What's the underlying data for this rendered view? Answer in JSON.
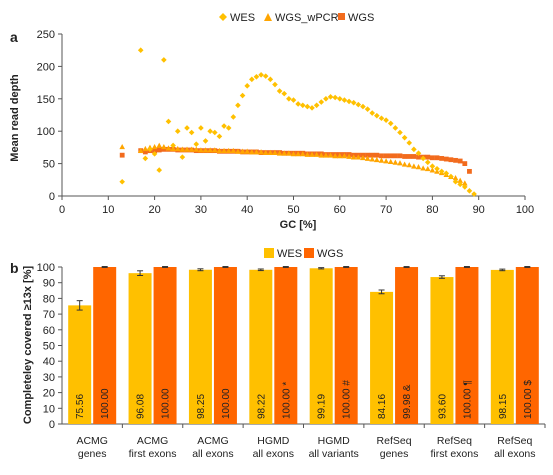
{
  "colors": {
    "wes": "#FFC000",
    "wgs": "#FF6600",
    "wes_marker": "#FFC000",
    "wgs_wpcr_marker": "#FFA500",
    "wgs_marker": "#F26B1D",
    "axis": "#555555"
  },
  "chart_data": [
    {
      "panel": "a",
      "type": "scatter",
      "xlabel": "GC [%]",
      "ylabel": "Mean read depth",
      "xlim": [
        0,
        100
      ],
      "ylim": [
        0,
        250
      ],
      "xticks": [
        "0",
        "10",
        "20",
        "30",
        "40",
        "50",
        "60",
        "70",
        "80",
        "90",
        "100"
      ],
      "yticks": [
        "0",
        "50",
        "100",
        "150",
        "200",
        "250"
      ],
      "legend_position": "top",
      "series": [
        {
          "name": "WES",
          "marker": "diamond",
          "points": [
            [
              13,
              22
            ],
            [
              17,
              225
            ],
            [
              18,
              58
            ],
            [
              19,
              72
            ],
            [
              20,
              65
            ],
            [
              21,
              40
            ],
            [
              22,
              210
            ],
            [
              23,
              115
            ],
            [
              24,
              78
            ],
            [
              25,
              100
            ],
            [
              26,
              60
            ],
            [
              27,
              105
            ],
            [
              28,
              98
            ],
            [
              29,
              80
            ],
            [
              30,
              105
            ],
            [
              31,
              85
            ],
            [
              32,
              100
            ],
            [
              33,
              98
            ],
            [
              34,
              92
            ],
            [
              35,
              108
            ],
            [
              36,
              105
            ],
            [
              37,
              122
            ],
            [
              38,
              140
            ],
            [
              39,
              155
            ],
            [
              40,
              170
            ],
            [
              41,
              180
            ],
            [
              42,
              184
            ],
            [
              43,
              187
            ],
            [
              44,
              185
            ],
            [
              45,
              180
            ],
            [
              46,
              172
            ],
            [
              47,
              162
            ],
            [
              48,
              158
            ],
            [
              49,
              150
            ],
            [
              50,
              148
            ],
            [
              51,
              142
            ],
            [
              52,
              140
            ],
            [
              53,
              138
            ],
            [
              54,
              136
            ],
            [
              55,
              140
            ],
            [
              56,
              145
            ],
            [
              57,
              150
            ],
            [
              58,
              153
            ],
            [
              59,
              152
            ],
            [
              60,
              150
            ],
            [
              61,
              148
            ],
            [
              62,
              146
            ],
            [
              63,
              144
            ],
            [
              64,
              141
            ],
            [
              65,
              138
            ],
            [
              66,
              134
            ],
            [
              67,
              128
            ],
            [
              68,
              124
            ],
            [
              69,
              120
            ],
            [
              70,
              117
            ],
            [
              71,
              112
            ],
            [
              72,
              105
            ],
            [
              73,
              98
            ],
            [
              74,
              90
            ],
            [
              75,
              82
            ],
            [
              76,
              72
            ],
            [
              77,
              66
            ],
            [
              78,
              58
            ],
            [
              79,
              52
            ],
            [
              80,
              46
            ],
            [
              81,
              42
            ],
            [
              82,
              38
            ],
            [
              83,
              35
            ],
            [
              84,
              30
            ],
            [
              85,
              22
            ],
            [
              86,
              18
            ],
            [
              87,
              14
            ],
            [
              88,
              8
            ],
            [
              89,
              3
            ]
          ]
        },
        {
          "name": "WGS_wPCR",
          "marker": "triangle",
          "points": [
            [
              13,
              76
            ],
            [
              17,
              70
            ],
            [
              18,
              73
            ],
            [
              19,
              75
            ],
            [
              20,
              76
            ],
            [
              21,
              78
            ],
            [
              22,
              76
            ],
            [
              23,
              74
            ],
            [
              24,
              73
            ],
            [
              25,
              73
            ],
            [
              26,
              72
            ],
            [
              27,
              72
            ],
            [
              28,
              72
            ],
            [
              29,
              72
            ],
            [
              30,
              71
            ],
            [
              31,
              71
            ],
            [
              32,
              71
            ],
            [
              33,
              71
            ],
            [
              34,
              70
            ],
            [
              35,
              70
            ],
            [
              36,
              70
            ],
            [
              37,
              70
            ],
            [
              38,
              69
            ],
            [
              39,
              69
            ],
            [
              40,
              69
            ],
            [
              41,
              68
            ],
            [
              42,
              68
            ],
            [
              43,
              68
            ],
            [
              44,
              67
            ],
            [
              45,
              67
            ],
            [
              46,
              67
            ],
            [
              47,
              66
            ],
            [
              48,
              66
            ],
            [
              49,
              66
            ],
            [
              50,
              65
            ],
            [
              51,
              65
            ],
            [
              52,
              65
            ],
            [
              53,
              64
            ],
            [
              54,
              64
            ],
            [
              55,
              64
            ],
            [
              56,
              63
            ],
            [
              57,
              63
            ],
            [
              58,
              63
            ],
            [
              59,
              62
            ],
            [
              60,
              62
            ],
            [
              61,
              62
            ],
            [
              62,
              61
            ],
            [
              63,
              60
            ],
            [
              64,
              60
            ],
            [
              65,
              59
            ],
            [
              66,
              58
            ],
            [
              67,
              57
            ],
            [
              68,
              56
            ],
            [
              69,
              55
            ],
            [
              70,
              54
            ],
            [
              71,
              53
            ],
            [
              72,
              52
            ],
            [
              73,
              51
            ],
            [
              74,
              49
            ],
            [
              75,
              48
            ],
            [
              76,
              46
            ],
            [
              77,
              45
            ],
            [
              78,
              43
            ],
            [
              79,
              42
            ],
            [
              80,
              40
            ],
            [
              81,
              38
            ],
            [
              82,
              36
            ],
            [
              83,
              33
            ],
            [
              84,
              30
            ],
            [
              85,
              28
            ],
            [
              86,
              24
            ],
            [
              87,
              20
            ]
          ]
        },
        {
          "name": "WGS",
          "marker": "square",
          "points": [
            [
              13,
              63
            ],
            [
              17,
              70
            ],
            [
              18,
              68
            ],
            [
              19,
              70
            ],
            [
              20,
              70
            ],
            [
              21,
              71
            ],
            [
              22,
              72
            ],
            [
              23,
              72
            ],
            [
              24,
              72
            ],
            [
              25,
              71
            ],
            [
              26,
              71
            ],
            [
              27,
              71
            ],
            [
              28,
              71
            ],
            [
              29,
              70
            ],
            [
              30,
              70
            ],
            [
              31,
              70
            ],
            [
              32,
              70
            ],
            [
              33,
              70
            ],
            [
              34,
              69
            ],
            [
              35,
              69
            ],
            [
              36,
              69
            ],
            [
              37,
              69
            ],
            [
              38,
              69
            ],
            [
              39,
              68
            ],
            [
              40,
              68
            ],
            [
              41,
              68
            ],
            [
              42,
              68
            ],
            [
              43,
              67
            ],
            [
              44,
              67
            ],
            [
              45,
              67
            ],
            [
              46,
              67
            ],
            [
              47,
              67
            ],
            [
              48,
              66
            ],
            [
              49,
              66
            ],
            [
              50,
              66
            ],
            [
              51,
              66
            ],
            [
              52,
              66
            ],
            [
              53,
              65
            ],
            [
              54,
              65
            ],
            [
              55,
              65
            ],
            [
              56,
              65
            ],
            [
              57,
              64
            ],
            [
              58,
              64
            ],
            [
              59,
              64
            ],
            [
              60,
              64
            ],
            [
              61,
              64
            ],
            [
              62,
              64
            ],
            [
              63,
              63
            ],
            [
              64,
              63
            ],
            [
              65,
              63
            ],
            [
              66,
              63
            ],
            [
              67,
              63
            ],
            [
              68,
              63
            ],
            [
              69,
              62
            ],
            [
              70,
              62
            ],
            [
              71,
              62
            ],
            [
              72,
              62
            ],
            [
              73,
              62
            ],
            [
              74,
              61
            ],
            [
              75,
              61
            ],
            [
              76,
              61
            ],
            [
              77,
              60
            ],
            [
              78,
              60
            ],
            [
              79,
              60
            ],
            [
              80,
              59
            ],
            [
              81,
              59
            ],
            [
              82,
              58
            ],
            [
              83,
              57
            ],
            [
              84,
              56
            ],
            [
              85,
              55
            ],
            [
              86,
              54
            ],
            [
              87,
              50
            ],
            [
              88,
              38
            ]
          ]
        }
      ]
    },
    {
      "panel": "b",
      "type": "bar",
      "ylabel": "Completeley covered ≥13x [%]",
      "ylim": [
        0,
        100
      ],
      "yticks": [
        "0",
        "10",
        "20",
        "30",
        "40",
        "50",
        "60",
        "70",
        "80",
        "90",
        "100"
      ],
      "legend_position": "top",
      "categories": [
        [
          "ACMG",
          "genes"
        ],
        [
          "ACMG",
          "first exons"
        ],
        [
          "ACMG",
          "all exons"
        ],
        [
          "HGMD",
          "all exons"
        ],
        [
          "HGMD",
          "all variants"
        ],
        [
          "RefSeq",
          "genes"
        ],
        [
          "RefSeq",
          "first exons"
        ],
        [
          "RefSeq",
          "all exons"
        ]
      ],
      "series": [
        {
          "name": "WES",
          "values": [
            75.56,
            96.08,
            98.25,
            98.22,
            99.19,
            84.16,
            93.6,
            98.15
          ],
          "errors": [
            3.0,
            1.5,
            0.6,
            0.5,
            0.4,
            1.2,
            0.8,
            0.5
          ],
          "labels": [
            "75.56",
            "96.08",
            "98.25",
            "98.22",
            "99.19",
            "84.16",
            "93.60",
            "98.15"
          ]
        },
        {
          "name": "WGS",
          "values": [
            100.0,
            100.0,
            100.0,
            100.0,
            100.0,
            99.98,
            100.0,
            100.0
          ],
          "errors": [
            0.3,
            0.3,
            0.3,
            0.3,
            0.3,
            0.3,
            0.3,
            0.3
          ],
          "labels": [
            "100.00",
            "100.00",
            "100.00",
            "100.00 *",
            "100.00 #",
            "99.98 &",
            "100.00 ¶",
            "100.00 $"
          ]
        }
      ]
    }
  ]
}
